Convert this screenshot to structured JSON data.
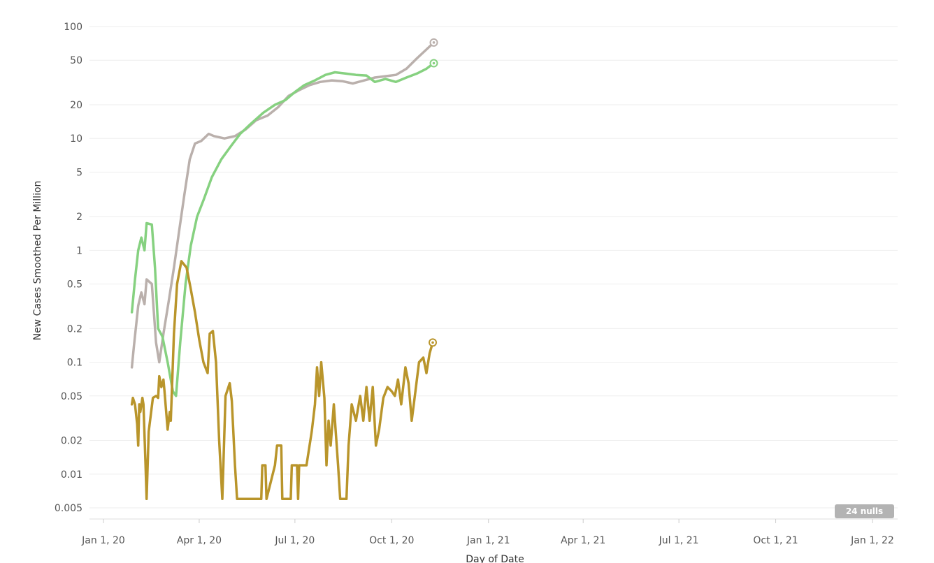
{
  "chart_data": {
    "type": "line",
    "xlabel": "Day of Date",
    "ylabel": "New Cases Smoothed Per Million",
    "y_scale": "log",
    "ylim": [
      0.004,
      110
    ],
    "y_ticks": [
      100,
      50,
      20,
      10,
      5,
      2,
      1,
      0.5,
      0.2,
      0.1,
      0.05,
      0.02,
      0.01,
      0.005
    ],
    "y_tick_labels": [
      "100",
      "50",
      "20",
      "10",
      "5",
      "2",
      "1",
      "0.5",
      "0.2",
      "0.1",
      "0.05",
      "0.02",
      "0.01",
      "0.005"
    ],
    "xlim": [
      "2019-12-01",
      "2022-01-15"
    ],
    "x_ticks": [
      "2020-01-01",
      "2020-04-01",
      "2020-07-01",
      "2020-10-01",
      "2021-01-01",
      "2021-04-01",
      "2021-07-01",
      "2021-10-01",
      "2022-01-01"
    ],
    "x_tick_labels": [
      "Jan 1, 20",
      "Apr 1, 20",
      "Jul 1, 20",
      "Oct 1, 20",
      "Jan 1, 21",
      "Apr 1, 21",
      "Jul 1, 21",
      "Oct 1, 21",
      "Jan 1, 22"
    ],
    "grid": "horizontal",
    "nulls_badge": "24 nulls",
    "series": [
      {
        "color": "#bab0ac",
        "points": [
          [
            "2020-01-28",
            0.09
          ],
          [
            "2020-01-30",
            0.14
          ],
          [
            "2020-02-03",
            0.32
          ],
          [
            "2020-02-06",
            0.42
          ],
          [
            "2020-02-09",
            0.33
          ],
          [
            "2020-02-11",
            0.55
          ],
          [
            "2020-02-16",
            0.5
          ],
          [
            "2020-02-20",
            0.15
          ],
          [
            "2020-02-23",
            0.1
          ],
          [
            "2020-02-27",
            0.18
          ],
          [
            "2020-03-03",
            0.35
          ],
          [
            "2020-03-08",
            0.7
          ],
          [
            "2020-03-13",
            1.5
          ],
          [
            "2020-03-18",
            3.2
          ],
          [
            "2020-03-23",
            6.5
          ],
          [
            "2020-03-28",
            9.0
          ],
          [
            "2020-04-03",
            9.5
          ],
          [
            "2020-04-10",
            11.0
          ],
          [
            "2020-04-15",
            10.5
          ],
          [
            "2020-04-25",
            10.0
          ],
          [
            "2020-05-05",
            10.5
          ],
          [
            "2020-05-15",
            12.0
          ],
          [
            "2020-05-25",
            14.5
          ],
          [
            "2020-06-05",
            16.0
          ],
          [
            "2020-06-15",
            19.0
          ],
          [
            "2020-06-25",
            24.0
          ],
          [
            "2020-07-05",
            27.0
          ],
          [
            "2020-07-15",
            30.0
          ],
          [
            "2020-07-25",
            32.0
          ],
          [
            "2020-08-05",
            33.0
          ],
          [
            "2020-08-15",
            32.5
          ],
          [
            "2020-08-25",
            31.0
          ],
          [
            "2020-09-05",
            33.0
          ],
          [
            "2020-09-15",
            35.0
          ],
          [
            "2020-09-25",
            36.0
          ],
          [
            "2020-10-05",
            37.0
          ],
          [
            "2020-10-15",
            42.0
          ],
          [
            "2020-10-25",
            52.0
          ],
          [
            "2020-11-05",
            65.0
          ],
          [
            "2020-11-10",
            72.0
          ]
        ]
      },
      {
        "color": "#86d180",
        "points": [
          [
            "2020-01-28",
            0.28
          ],
          [
            "2020-01-31",
            0.55
          ],
          [
            "2020-02-03",
            1.0
          ],
          [
            "2020-02-06",
            1.3
          ],
          [
            "2020-02-09",
            1.0
          ],
          [
            "2020-02-11",
            1.75
          ],
          [
            "2020-02-16",
            1.7
          ],
          [
            "2020-02-19",
            0.7
          ],
          [
            "2020-02-22",
            0.2
          ],
          [
            "2020-02-26",
            0.17
          ],
          [
            "2020-03-02",
            0.1
          ],
          [
            "2020-03-07",
            0.055
          ],
          [
            "2020-03-10",
            0.05
          ],
          [
            "2020-03-14",
            0.15
          ],
          [
            "2020-03-19",
            0.5
          ],
          [
            "2020-03-24",
            1.1
          ],
          [
            "2020-03-30",
            2.0
          ],
          [
            "2020-04-05",
            2.8
          ],
          [
            "2020-04-13",
            4.5
          ],
          [
            "2020-04-22",
            6.5
          ],
          [
            "2020-05-01",
            8.5
          ],
          [
            "2020-05-10",
            11.0
          ],
          [
            "2020-05-20",
            13.5
          ],
          [
            "2020-06-01",
            17.0
          ],
          [
            "2020-06-12",
            20.0
          ],
          [
            "2020-06-22",
            22.0
          ],
          [
            "2020-07-01",
            26.0
          ],
          [
            "2020-07-10",
            30.0
          ],
          [
            "2020-07-20",
            33.0
          ],
          [
            "2020-07-30",
            37.0
          ],
          [
            "2020-08-08",
            39.0
          ],
          [
            "2020-08-18",
            38.0
          ],
          [
            "2020-08-28",
            37.0
          ],
          [
            "2020-09-07",
            36.5
          ],
          [
            "2020-09-15",
            32.0
          ],
          [
            "2020-09-25",
            34.0
          ],
          [
            "2020-10-05",
            32.0
          ],
          [
            "2020-10-15",
            35.0
          ],
          [
            "2020-10-25",
            38.0
          ],
          [
            "2020-11-03",
            42.0
          ],
          [
            "2020-11-10",
            47.0
          ]
        ]
      },
      {
        "color": "#b9952b",
        "points": [
          [
            "2020-01-28",
            0.042
          ],
          [
            "2020-01-29",
            0.048
          ],
          [
            "2020-01-31",
            0.042
          ],
          [
            "2020-02-02",
            0.028
          ],
          [
            "2020-02-03",
            0.018
          ],
          [
            "2020-02-04",
            0.042
          ],
          [
            "2020-02-05",
            0.036
          ],
          [
            "2020-02-07",
            0.048
          ],
          [
            "2020-02-08",
            0.042
          ],
          [
            "2020-02-10",
            0.012
          ],
          [
            "2020-02-11",
            0.006
          ],
          [
            "2020-02-13",
            0.024
          ],
          [
            "2020-02-17",
            0.048
          ],
          [
            "2020-02-20",
            0.05
          ],
          [
            "2020-02-22",
            0.048
          ],
          [
            "2020-02-23",
            0.075
          ],
          [
            "2020-02-25",
            0.06
          ],
          [
            "2020-02-27",
            0.07
          ],
          [
            "2020-02-28",
            0.055
          ],
          [
            "2020-03-02",
            0.025
          ],
          [
            "2020-03-04",
            0.036
          ],
          [
            "2020-03-05",
            0.03
          ],
          [
            "2020-03-08",
            0.18
          ],
          [
            "2020-03-11",
            0.5
          ],
          [
            "2020-03-15",
            0.8
          ],
          [
            "2020-03-20",
            0.7
          ],
          [
            "2020-03-24",
            0.45
          ],
          [
            "2020-03-28",
            0.28
          ],
          [
            "2020-04-01",
            0.16
          ],
          [
            "2020-04-05",
            0.1
          ],
          [
            "2020-04-09",
            0.08
          ],
          [
            "2020-04-11",
            0.18
          ],
          [
            "2020-04-14",
            0.19
          ],
          [
            "2020-04-17",
            0.1
          ],
          [
            "2020-04-20",
            0.02
          ],
          [
            "2020-04-23",
            0.006
          ],
          [
            "2020-04-26",
            0.05
          ],
          [
            "2020-04-30",
            0.065
          ],
          [
            "2020-05-02",
            0.045
          ],
          [
            "2020-05-05",
            0.012
          ],
          [
            "2020-05-07",
            0.006
          ],
          [
            "2020-05-30",
            0.006
          ],
          [
            "2020-05-31",
            0.012
          ],
          [
            "2020-06-03",
            0.012
          ],
          [
            "2020-06-04",
            0.006
          ],
          [
            "2020-06-12",
            0.012
          ],
          [
            "2020-06-14",
            0.018
          ],
          [
            "2020-06-18",
            0.018
          ],
          [
            "2020-06-19",
            0.006
          ],
          [
            "2020-06-27",
            0.006
          ],
          [
            "2020-06-28",
            0.012
          ],
          [
            "2020-07-03",
            0.012
          ],
          [
            "2020-07-04",
            0.006
          ],
          [
            "2020-07-05",
            0.012
          ],
          [
            "2020-07-12",
            0.012
          ],
          [
            "2020-07-17",
            0.024
          ],
          [
            "2020-07-20",
            0.042
          ],
          [
            "2020-07-22",
            0.09
          ],
          [
            "2020-07-24",
            0.05
          ],
          [
            "2020-07-26",
            0.1
          ],
          [
            "2020-07-29",
            0.048
          ],
          [
            "2020-07-31",
            0.012
          ],
          [
            "2020-08-02",
            0.03
          ],
          [
            "2020-08-04",
            0.018
          ],
          [
            "2020-08-07",
            0.042
          ],
          [
            "2020-08-11",
            0.012
          ],
          [
            "2020-08-13",
            0.006
          ],
          [
            "2020-08-19",
            0.006
          ],
          [
            "2020-08-21",
            0.018
          ],
          [
            "2020-08-24",
            0.042
          ],
          [
            "2020-08-28",
            0.03
          ],
          [
            "2020-09-01",
            0.05
          ],
          [
            "2020-09-04",
            0.03
          ],
          [
            "2020-09-07",
            0.06
          ],
          [
            "2020-09-10",
            0.03
          ],
          [
            "2020-09-13",
            0.06
          ],
          [
            "2020-09-16",
            0.018
          ],
          [
            "2020-09-19",
            0.025
          ],
          [
            "2020-09-23",
            0.048
          ],
          [
            "2020-09-27",
            0.06
          ],
          [
            "2020-10-01",
            0.055
          ],
          [
            "2020-10-04",
            0.05
          ],
          [
            "2020-10-07",
            0.07
          ],
          [
            "2020-10-10",
            0.042
          ],
          [
            "2020-10-14",
            0.09
          ],
          [
            "2020-10-17",
            0.065
          ],
          [
            "2020-10-20",
            0.03
          ],
          [
            "2020-10-23",
            0.05
          ],
          [
            "2020-10-27",
            0.1
          ],
          [
            "2020-10-31",
            0.11
          ],
          [
            "2020-11-03",
            0.08
          ],
          [
            "2020-11-06",
            0.12
          ],
          [
            "2020-11-09",
            0.15
          ]
        ]
      }
    ]
  }
}
